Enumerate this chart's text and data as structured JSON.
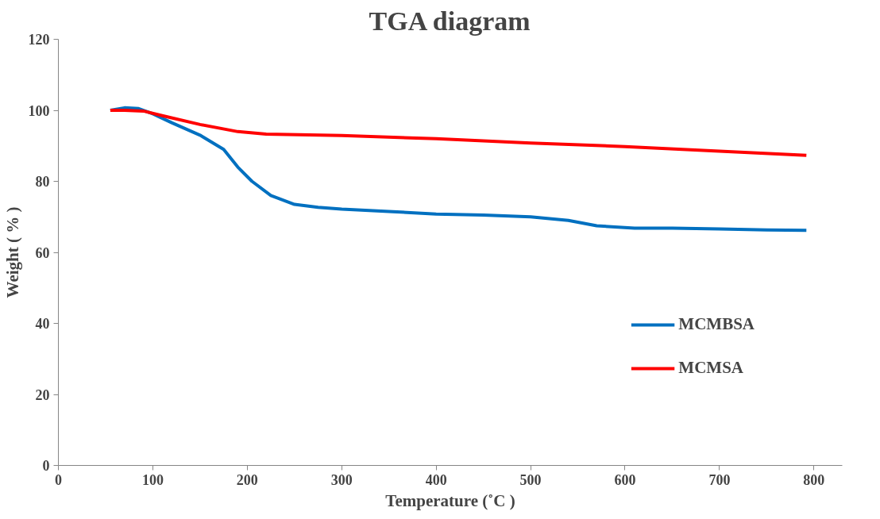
{
  "chart_data": {
    "type": "line",
    "title": "TGA diagram",
    "xlabel": "Temperature (˚C )",
    "ylabel": "Weight ( % )",
    "xlim": [
      0,
      830
    ],
    "ylim": [
      0,
      120
    ],
    "xticks": [
      0,
      100,
      200,
      300,
      400,
      500,
      600,
      700,
      800
    ],
    "yticks": [
      0,
      20,
      40,
      60,
      80,
      100,
      120
    ],
    "grid": false,
    "legend": "bottom right",
    "marker": "none",
    "line_style": "solid",
    "series": [
      {
        "name": "MCMBSA",
        "color": "#0070c0",
        "x": [
          55,
          70,
          85,
          100,
          120,
          150,
          175,
          190,
          205,
          225,
          250,
          275,
          300,
          350,
          400,
          450,
          500,
          540,
          570,
          610,
          650,
          700,
          750,
          792
        ],
        "values": [
          100,
          100.7,
          100.5,
          99,
          96.5,
          93,
          89,
          84,
          80,
          76,
          73.5,
          72.7,
          72.2,
          71.5,
          70.8,
          70.5,
          70,
          69,
          67.5,
          66.8,
          66.8,
          66.6,
          66.3,
          66.2
        ]
      },
      {
        "name": "MCMSA",
        "color": "#ff0000",
        "x": [
          55,
          70,
          90,
          110,
          150,
          190,
          220,
          300,
          400,
          500,
          600,
          700,
          792
        ],
        "values": [
          100,
          100,
          99.8,
          98.5,
          96,
          94,
          93.3,
          92.9,
          92,
          90.8,
          89.8,
          88.5,
          87.3
        ]
      }
    ]
  }
}
